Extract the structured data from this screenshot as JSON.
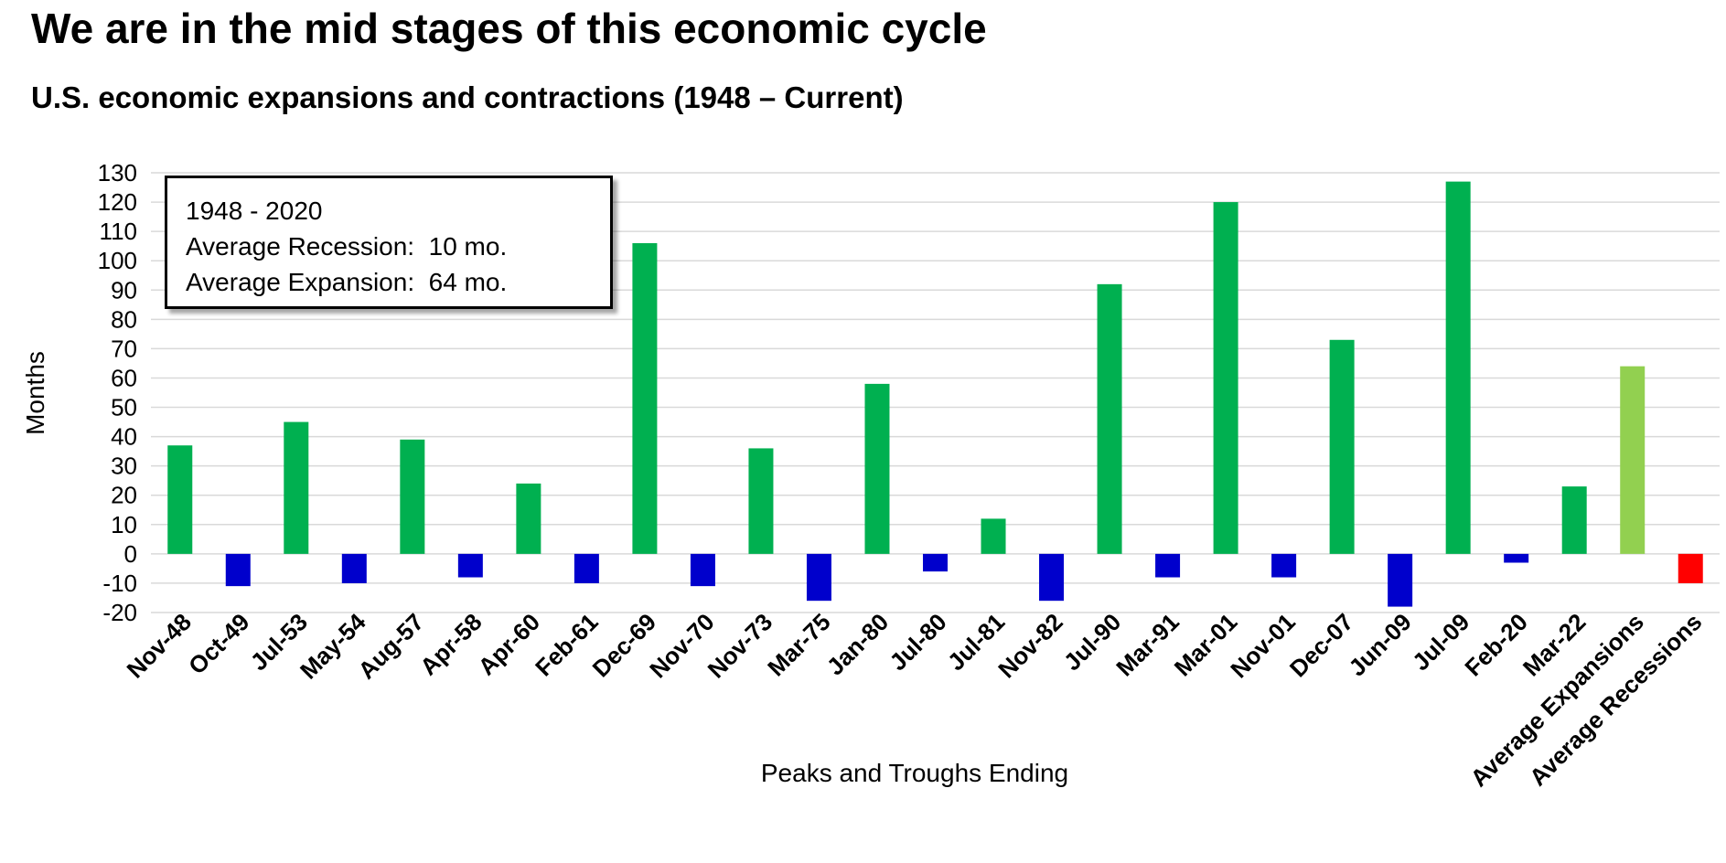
{
  "header": {
    "title": "We are in the mid stages of this economic cycle",
    "subtitle": "U.S. economic expansions and contractions (1948 – Current)"
  },
  "info_box": {
    "line1": "1948 - 2020",
    "line2": "Average Recession:  10 mo.",
    "line3": "Average Expansion:  64 mo."
  },
  "colors": {
    "expansion": "#00b050",
    "recession": "#0000cc",
    "average_expansion": "#92d050",
    "average_recession": "#ff0000",
    "grid": "#d9d9d9"
  },
  "chart_data": {
    "type": "bar",
    "title": "U.S. economic expansions and contractions (1948 – Current)",
    "xlabel": "Peaks and Troughs Ending",
    "ylabel": "Months",
    "ylim": [
      -20,
      130
    ],
    "yticks": [
      130,
      120,
      110,
      100,
      90,
      80,
      70,
      60,
      50,
      40,
      30,
      20,
      10,
      0,
      -10,
      -20
    ],
    "grid": true,
    "categories": [
      "Nov-48",
      "Oct-49",
      "Jul-53",
      "May-54",
      "Aug-57",
      "Apr-58",
      "Apr-60",
      "Feb-61",
      "Dec-69",
      "Nov-70",
      "Nov-73",
      "Mar-75",
      "Jan-80",
      "Jul-80",
      "Jul-81",
      "Nov-82",
      "Jul-90",
      "Mar-91",
      "Mar-01",
      "Nov-01",
      "Dec-07",
      "Jun-09",
      "Jul-09",
      "Feb-20",
      "Mar-22",
      "Average Expansions",
      "Average Recessions"
    ],
    "values": [
      37,
      -11,
      45,
      -10,
      39,
      -8,
      24,
      -10,
      106,
      -11,
      36,
      -16,
      58,
      -6,
      12,
      -16,
      92,
      -8,
      120,
      -8,
      73,
      -18,
      127,
      -3,
      23,
      64,
      -10
    ],
    "bar_kinds": [
      "expansion",
      "recession",
      "expansion",
      "recession",
      "expansion",
      "recession",
      "expansion",
      "recession",
      "expansion",
      "recession",
      "expansion",
      "recession",
      "expansion",
      "recession",
      "expansion",
      "recession",
      "expansion",
      "recession",
      "expansion",
      "recession",
      "expansion",
      "recession",
      "expansion",
      "recession",
      "expansion",
      "average_expansion",
      "average_recession"
    ]
  }
}
